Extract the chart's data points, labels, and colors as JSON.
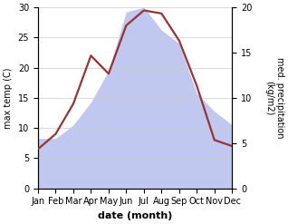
{
  "months": [
    "Jan",
    "Feb",
    "Mar",
    "Apr",
    "May",
    "Jun",
    "Jul",
    "Aug",
    "Sep",
    "Oct",
    "Nov",
    "Dec"
  ],
  "month_indices": [
    1,
    2,
    3,
    4,
    5,
    6,
    7,
    8,
    9,
    10,
    11,
    12
  ],
  "temperature": [
    6.5,
    9.0,
    14.0,
    22.0,
    19.0,
    27.0,
    29.5,
    29.0,
    24.5,
    17.0,
    8.0,
    7.0
  ],
  "precipitation": [
    5.5,
    5.5,
    7.0,
    9.5,
    13.0,
    19.5,
    20.0,
    17.5,
    16.0,
    10.5,
    8.5,
    7.0
  ],
  "temp_color": "#993333",
  "precip_color": "#c0c8f0",
  "temp_ylim": [
    0,
    30
  ],
  "precip_ylim": [
    0,
    20
  ],
  "temp_yticks": [
    0,
    5,
    10,
    15,
    20,
    25,
    30
  ],
  "precip_yticks": [
    0,
    5,
    10,
    15,
    20
  ],
  "xlabel": "date (month)",
  "ylabel_left": "max temp (C)",
  "ylabel_right": "med. precipitation\n(kg/m2)",
  "label_fontsize": 8,
  "tick_fontsize": 7,
  "line_width": 1.6,
  "background_color": "#ffffff"
}
